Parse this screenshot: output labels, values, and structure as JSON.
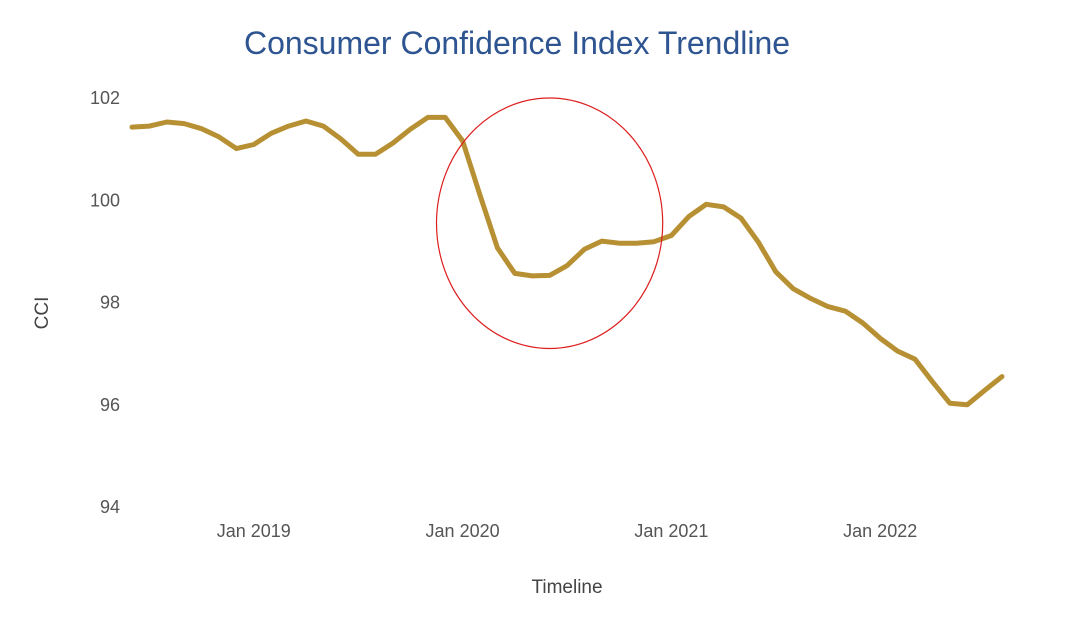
{
  "chart_data": {
    "type": "line",
    "title": "Consumer Confidence Index Trendline",
    "xlabel": "Timeline",
    "ylabel": "CCI",
    "ylim": [
      94,
      102
    ],
    "yticks": [
      "94",
      "96",
      "98",
      "100",
      "102"
    ],
    "xticks": [
      {
        "label": "Jan 2019",
        "date": "2019-01"
      },
      {
        "label": "Jan 2020",
        "date": "2020-01"
      },
      {
        "label": "Jan 2021",
        "date": "2021-01"
      },
      {
        "label": "Jan 2022",
        "date": "2022-01"
      }
    ],
    "grid": false,
    "colors": {
      "title": "#2e5591",
      "line": "#b89034",
      "annotation": "#dd1f1f"
    },
    "annotation": {
      "shape": "ellipse",
      "center_date": "2020-06",
      "center_value": 99.55,
      "x_half_width_months": 6.5,
      "y_half_height": 2.45
    },
    "series": [
      {
        "x": [
          "2018-06",
          "2018-07",
          "2018-08",
          "2018-09",
          "2018-10",
          "2018-11",
          "2018-12",
          "2019-01",
          "2019-02",
          "2019-03",
          "2019-04",
          "2019-05",
          "2019-06",
          "2019-07",
          "2019-08",
          "2019-09",
          "2019-10",
          "2019-11",
          "2019-12",
          "2020-01",
          "2020-02",
          "2020-03",
          "2020-04",
          "2020-05",
          "2020-06",
          "2020-07",
          "2020-08",
          "2020-09",
          "2020-10",
          "2020-11",
          "2020-12",
          "2021-01",
          "2021-02",
          "2021-03",
          "2021-04",
          "2021-05",
          "2021-06",
          "2021-07",
          "2021-08",
          "2021-09",
          "2021-10",
          "2021-11",
          "2021-12",
          "2022-01",
          "2022-02",
          "2022-03",
          "2022-04",
          "2022-05",
          "2022-06",
          "2022-07",
          "2022-08"
        ],
        "values": [
          101.43,
          101.45,
          101.53,
          101.5,
          101.4,
          101.24,
          101.01,
          101.09,
          101.31,
          101.45,
          101.55,
          101.45,
          101.2,
          100.9,
          100.9,
          101.12,
          101.39,
          101.62,
          101.62,
          101.16,
          100.1,
          99.07,
          98.57,
          98.52,
          98.53,
          98.72,
          99.04,
          99.2,
          99.16,
          99.16,
          99.19,
          99.31,
          99.68,
          99.92,
          99.87,
          99.65,
          99.18,
          98.6,
          98.27,
          98.08,
          97.92,
          97.83,
          97.6,
          97.3,
          97.05,
          96.89,
          96.45,
          96.03,
          96.0,
          96.28,
          96.55
        ]
      }
    ]
  }
}
